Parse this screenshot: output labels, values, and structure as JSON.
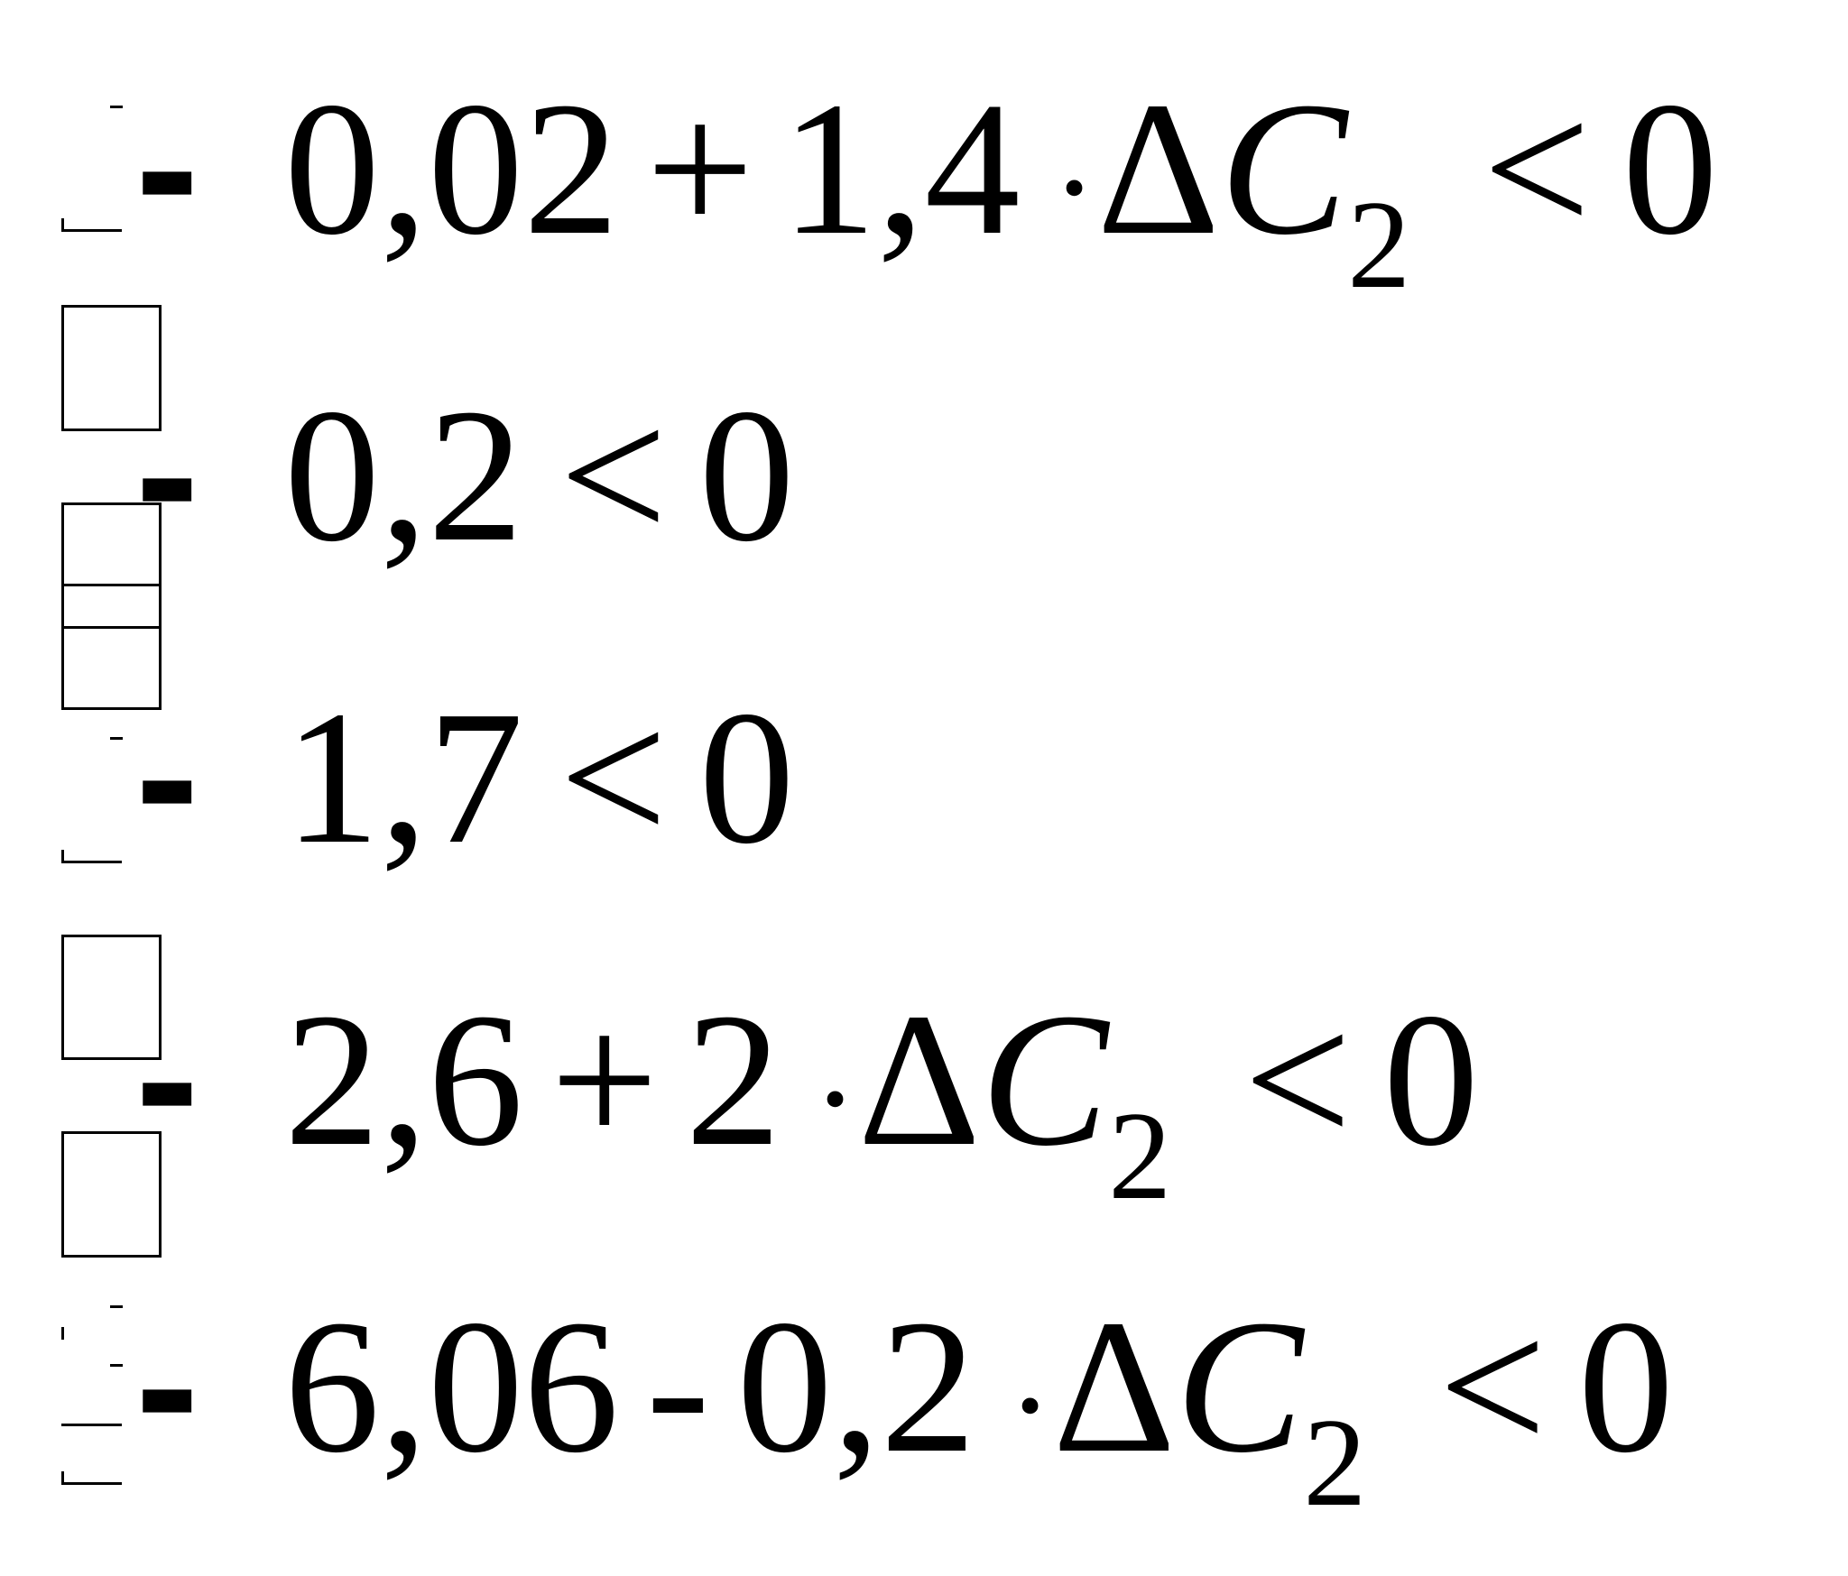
{
  "equations": [
    {
      "tokens": [
        {
          "t": "sign",
          "v": "-"
        },
        {
          "t": "num",
          "v": "0,02"
        },
        {
          "t": "op",
          "v": "+"
        },
        {
          "t": "num",
          "v": "1,4"
        },
        {
          "t": "dot",
          "v": "·"
        },
        {
          "t": "delta",
          "v": "Δ"
        },
        {
          "t": "var",
          "v": "C"
        },
        {
          "t": "sub",
          "v": "2"
        },
        {
          "t": "rel",
          "v": "<"
        },
        {
          "t": "num",
          "v": "0"
        }
      ]
    },
    {
      "tokens": [
        {
          "t": "sign",
          "v": "-"
        },
        {
          "t": "num",
          "v": "0,2"
        },
        {
          "t": "rel",
          "v": "<"
        },
        {
          "t": "num",
          "v": "0"
        }
      ]
    },
    {
      "tokens": [
        {
          "t": "sign",
          "v": "-"
        },
        {
          "t": "num",
          "v": "1,7"
        },
        {
          "t": "rel",
          "v": "<"
        },
        {
          "t": "num",
          "v": "0"
        }
      ]
    },
    {
      "tokens": [
        {
          "t": "sign",
          "v": "-"
        },
        {
          "t": "num",
          "v": "2,6"
        },
        {
          "t": "op",
          "v": "+"
        },
        {
          "t": "num",
          "v": "2"
        },
        {
          "t": "dot",
          "v": "·"
        },
        {
          "t": "delta",
          "v": "Δ"
        },
        {
          "t": "var",
          "v": "C"
        },
        {
          "t": "sub",
          "v": "2"
        },
        {
          "t": "rel",
          "v": "<"
        },
        {
          "t": "num",
          "v": "0"
        }
      ]
    },
    {
      "tokens": [
        {
          "t": "sign",
          "v": "-"
        },
        {
          "t": "num",
          "v": "6,06"
        },
        {
          "t": "op",
          "v": "-"
        },
        {
          "t": "num",
          "v": "0,2"
        },
        {
          "t": "dot",
          "v": "·"
        },
        {
          "t": "delta",
          "v": "Δ"
        },
        {
          "t": "var",
          "v": "C"
        },
        {
          "t": "sub",
          "v": "2"
        },
        {
          "t": "rel",
          "v": "<"
        },
        {
          "t": "num",
          "v": "0"
        }
      ]
    }
  ]
}
